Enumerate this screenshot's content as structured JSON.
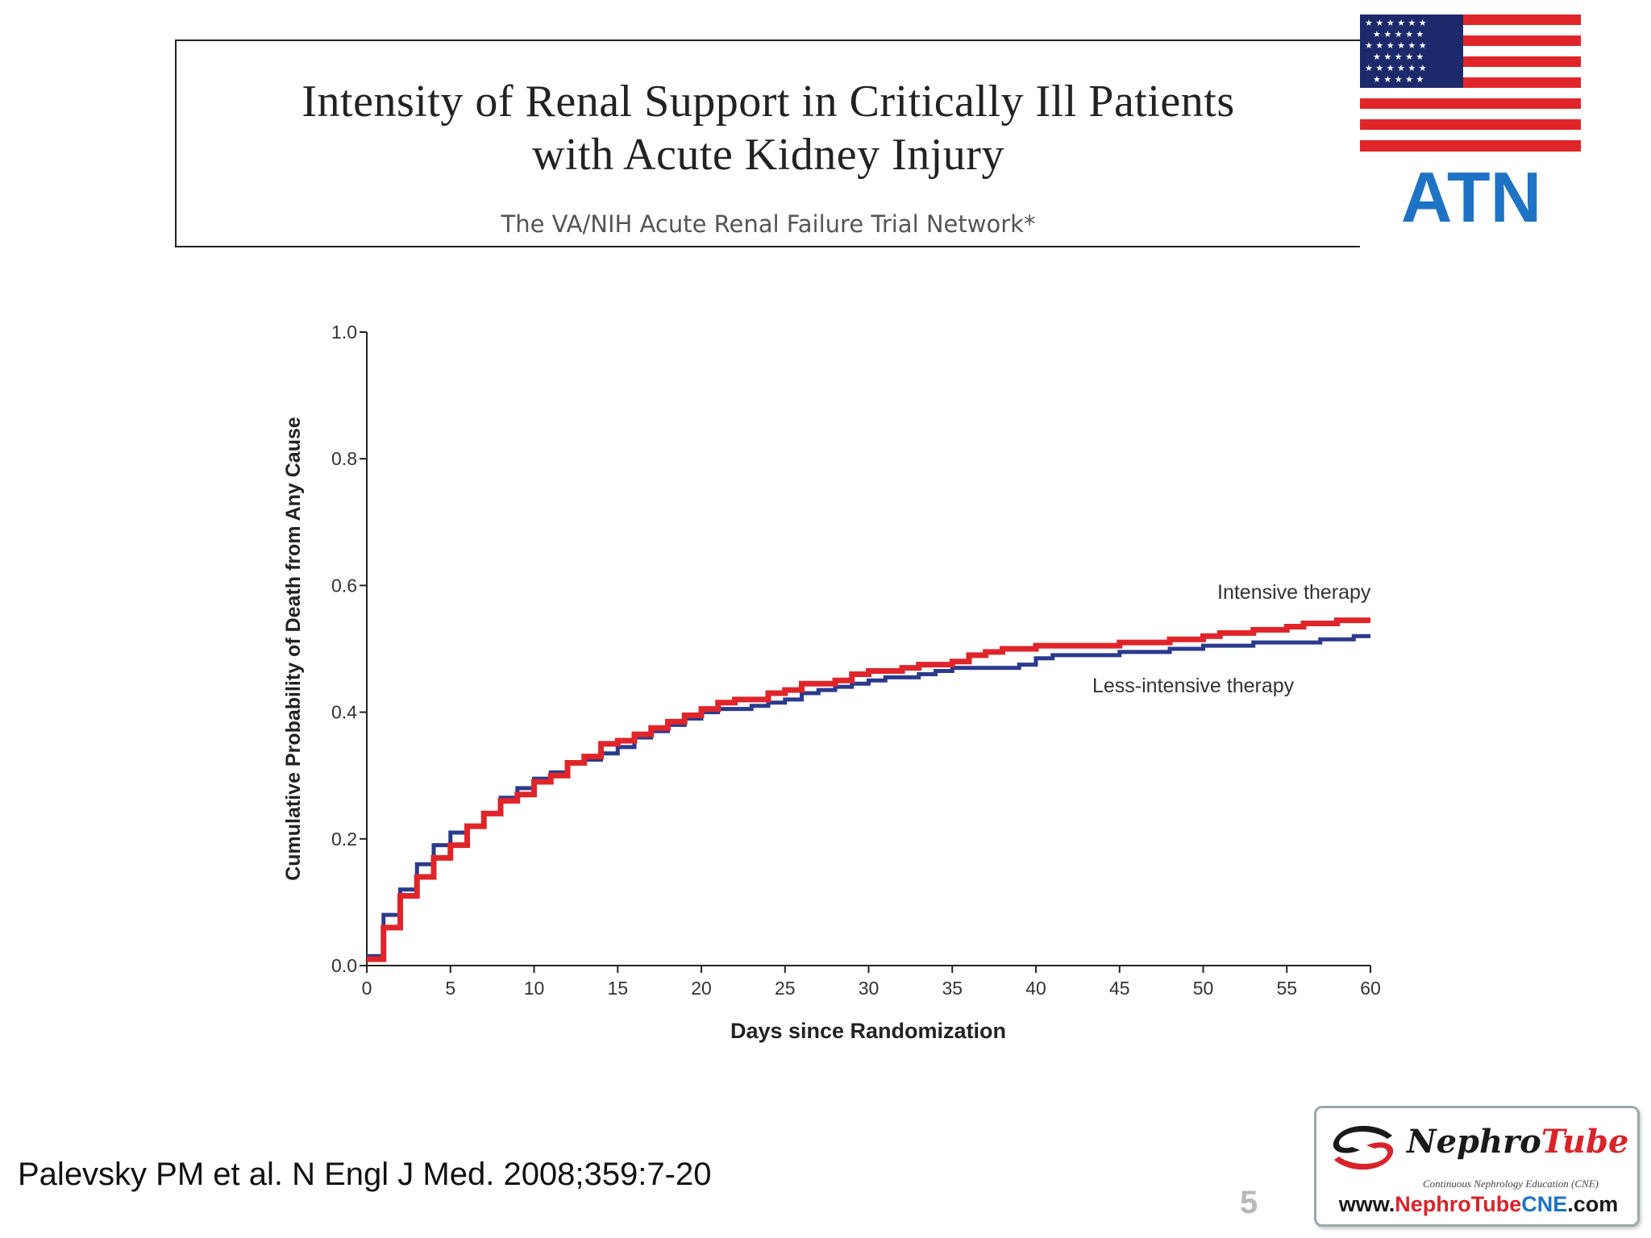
{
  "header": {
    "title_line1": "Intensity of Renal Support in Critically Ill Patients",
    "title_line2": "with Acute Kidney Injury",
    "subtitle": "The VA/NIH Acute Renal Failure Trial Network*"
  },
  "badge": {
    "label": "ATN",
    "flag_icon": "us-flag-icon",
    "color": "#1f73c4"
  },
  "citation": "Palevsky PM et al. N Engl J Med. 2008;359:7-20",
  "page_number": "5",
  "logo": {
    "name_part1": "Nephro",
    "name_part2": "Tube",
    "tagline": "Continuous Nephrology Education (CNE)",
    "url_part1": "www.",
    "url_part2": "Nephro",
    "url_part3": "Tube",
    "url_part4": "CNE",
    "url_part5": ".com"
  },
  "chart_data": {
    "type": "line",
    "step": true,
    "xlabel": "Days since Randomization",
    "ylabel": "Cumulative Probability of Death from Any Cause",
    "xlim": [
      0,
      60
    ],
    "ylim": [
      0,
      1.0
    ],
    "xticks": [
      "0",
      "5",
      "10",
      "15",
      "20",
      "25",
      "30",
      "35",
      "40",
      "45",
      "50",
      "55",
      "60"
    ],
    "yticks": [
      "0.0",
      "0.2",
      "0.4",
      "0.6",
      "0.8",
      "1.0"
    ],
    "grid": false,
    "series": [
      {
        "name": "Intensive therapy",
        "color": "#e0252a",
        "points": [
          [
            0,
            0.01
          ],
          [
            1,
            0.06
          ],
          [
            2,
            0.11
          ],
          [
            3,
            0.14
          ],
          [
            4,
            0.17
          ],
          [
            5,
            0.19
          ],
          [
            6,
            0.22
          ],
          [
            7,
            0.24
          ],
          [
            8,
            0.26
          ],
          [
            9,
            0.27
          ],
          [
            10,
            0.29
          ],
          [
            11,
            0.3
          ],
          [
            12,
            0.32
          ],
          [
            13,
            0.33
          ],
          [
            14,
            0.35
          ],
          [
            15,
            0.355
          ],
          [
            16,
            0.365
          ],
          [
            17,
            0.375
          ],
          [
            18,
            0.385
          ],
          [
            19,
            0.395
          ],
          [
            20,
            0.405
          ],
          [
            21,
            0.415
          ],
          [
            22,
            0.42
          ],
          [
            24,
            0.43
          ],
          [
            25,
            0.435
          ],
          [
            26,
            0.445
          ],
          [
            28,
            0.45
          ],
          [
            29,
            0.46
          ],
          [
            30,
            0.465
          ],
          [
            32,
            0.47
          ],
          [
            33,
            0.475
          ],
          [
            35,
            0.48
          ],
          [
            36,
            0.49
          ],
          [
            37,
            0.495
          ],
          [
            38,
            0.5
          ],
          [
            40,
            0.505
          ],
          [
            42,
            0.505
          ],
          [
            45,
            0.51
          ],
          [
            48,
            0.515
          ],
          [
            50,
            0.52
          ],
          [
            51,
            0.525
          ],
          [
            53,
            0.53
          ],
          [
            55,
            0.535
          ],
          [
            56,
            0.54
          ],
          [
            58,
            0.545
          ],
          [
            60,
            0.545
          ]
        ]
      },
      {
        "name": "Less-intensive therapy",
        "color": "#2b3a8c",
        "points": [
          [
            0,
            0.015
          ],
          [
            1,
            0.08
          ],
          [
            2,
            0.12
          ],
          [
            3,
            0.16
          ],
          [
            4,
            0.19
          ],
          [
            5,
            0.21
          ],
          [
            6,
            0.22
          ],
          [
            7,
            0.24
          ],
          [
            8,
            0.265
          ],
          [
            9,
            0.28
          ],
          [
            10,
            0.295
          ],
          [
            11,
            0.305
          ],
          [
            12,
            0.32
          ],
          [
            13,
            0.325
          ],
          [
            14,
            0.335
          ],
          [
            15,
            0.345
          ],
          [
            16,
            0.36
          ],
          [
            17,
            0.37
          ],
          [
            18,
            0.38
          ],
          [
            19,
            0.39
          ],
          [
            20,
            0.4
          ],
          [
            21,
            0.405
          ],
          [
            22,
            0.405
          ],
          [
            23,
            0.41
          ],
          [
            24,
            0.415
          ],
          [
            25,
            0.42
          ],
          [
            26,
            0.43
          ],
          [
            27,
            0.435
          ],
          [
            28,
            0.44
          ],
          [
            29,
            0.445
          ],
          [
            30,
            0.45
          ],
          [
            31,
            0.455
          ],
          [
            33,
            0.46
          ],
          [
            34,
            0.465
          ],
          [
            35,
            0.47
          ],
          [
            38,
            0.47
          ],
          [
            39,
            0.475
          ],
          [
            40,
            0.485
          ],
          [
            41,
            0.49
          ],
          [
            43,
            0.49
          ],
          [
            45,
            0.495
          ],
          [
            48,
            0.5
          ],
          [
            50,
            0.505
          ],
          [
            53,
            0.51
          ],
          [
            55,
            0.51
          ],
          [
            57,
            0.515
          ],
          [
            59,
            0.52
          ],
          [
            60,
            0.52
          ]
        ]
      }
    ],
    "annotations": [
      "Intensive therapy",
      "Less-intensive therapy"
    ]
  }
}
